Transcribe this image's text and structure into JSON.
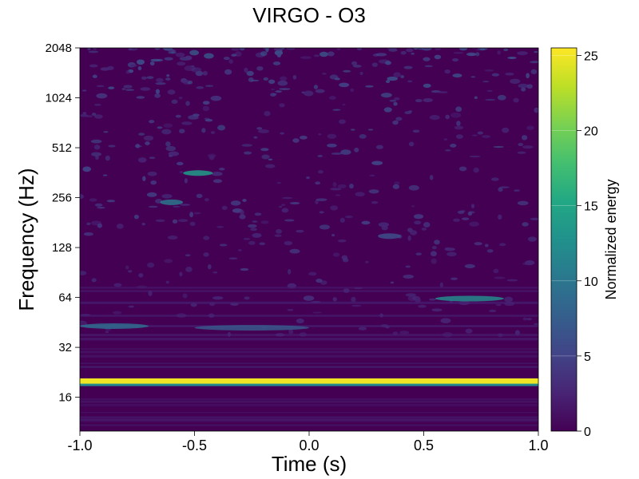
{
  "chart_data": {
    "type": "heatmap",
    "title": "VIRGO - O3",
    "xlabel": "Time (s)",
    "ylabel": "Frequency (Hz)",
    "xlim": [
      -1.0,
      1.0
    ],
    "ylim": [
      10,
      2048
    ],
    "yscale": "log2",
    "x_ticks": [
      -1.0,
      -0.5,
      0.0,
      0.5,
      1.0
    ],
    "x_tick_labels": [
      "-1.0",
      "-0.5",
      "0.0",
      "0.5",
      "1.0"
    ],
    "y_ticks": [
      16,
      32,
      64,
      128,
      256,
      512,
      1024,
      2048
    ],
    "y_tick_labels": [
      "16",
      "32",
      "64",
      "128",
      "256",
      "512",
      "1024",
      "2048"
    ],
    "colorbar": {
      "label": "Normalized energy",
      "range": [
        0,
        25.5
      ],
      "ticks": [
        0,
        5,
        10,
        15,
        20,
        25
      ],
      "tick_labels": [
        "0",
        "5",
        "10",
        "15",
        "20",
        "25"
      ],
      "colormap": "viridis"
    },
    "features": [
      {
        "t_range": [
          -1.0,
          1.0
        ],
        "freq": 20,
        "energy": 25
      },
      {
        "t_range": [
          -1.0,
          1.0
        ],
        "freq": 19,
        "energy": 12
      },
      {
        "t_range": [
          -0.55,
          -0.42
        ],
        "freq": 360,
        "energy": 14
      },
      {
        "t_range": [
          -0.65,
          -0.55
        ],
        "freq": 240,
        "energy": 10
      },
      {
        "t_range": [
          0.55,
          0.85
        ],
        "freq": 63,
        "energy": 12
      },
      {
        "t_range": [
          -1.0,
          -0.7
        ],
        "freq": 43,
        "energy": 9
      },
      {
        "t_range": [
          -0.5,
          0.0
        ],
        "freq": 42,
        "energy": 7
      },
      {
        "t_range": [
          0.3,
          0.4
        ],
        "freq": 150,
        "energy": 6
      }
    ],
    "grid": false,
    "legend": "none"
  },
  "colors": {
    "viridis_low": "#440154",
    "viridis_high": "#fde725"
  }
}
